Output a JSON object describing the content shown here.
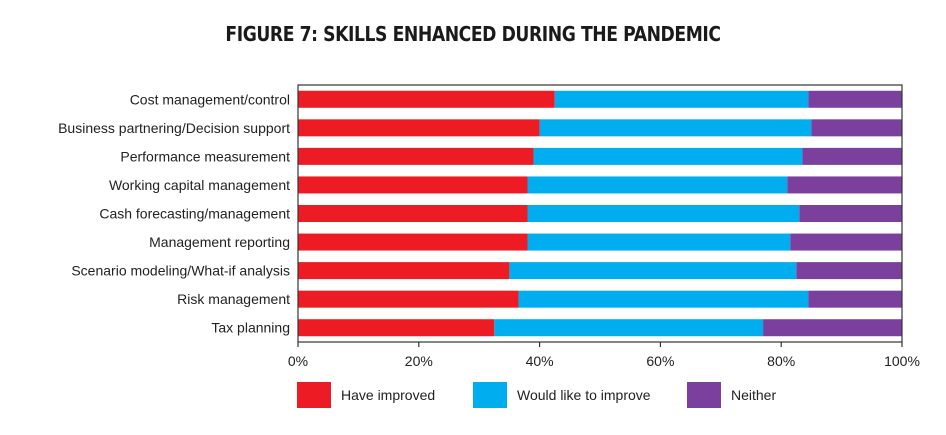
{
  "title": "FIGURE 7: SKILLS ENHANCED DURING THE PANDEMIC",
  "colors": {
    "have_improved": "#ed1c24",
    "would_like": "#00aeef",
    "neither": "#7b3f9e"
  },
  "chart_data": {
    "type": "bar",
    "orientation": "horizontal",
    "stacked": true,
    "title": "FIGURE 7: SKILLS ENHANCED DURING THE PANDEMIC",
    "categories": [
      "Cost management/control",
      "Business partnering/Decision support",
      "Performance measurement",
      "Working capital management",
      "Cash forecasting/management",
      "Management reporting",
      "Scenario modeling/What-if analysis",
      "Risk management",
      "Tax planning"
    ],
    "series": [
      {
        "name": "Have improved",
        "values": [
          42.5,
          40,
          39,
          38,
          38,
          38,
          35,
          36.5,
          32.5
        ]
      },
      {
        "name": "Would like to improve",
        "values": [
          42,
          45,
          44.5,
          43,
          45,
          43.5,
          47.5,
          48,
          44.5
        ]
      },
      {
        "name": "Neither",
        "values": [
          15.5,
          15,
          16.5,
          19,
          17,
          18.5,
          17.5,
          15.5,
          23
        ]
      }
    ],
    "xlim": [
      0,
      100
    ],
    "xticks": [
      "0%",
      "20%",
      "40%",
      "60%",
      "80%",
      "100%"
    ],
    "legend": "bottom",
    "grid": false
  }
}
